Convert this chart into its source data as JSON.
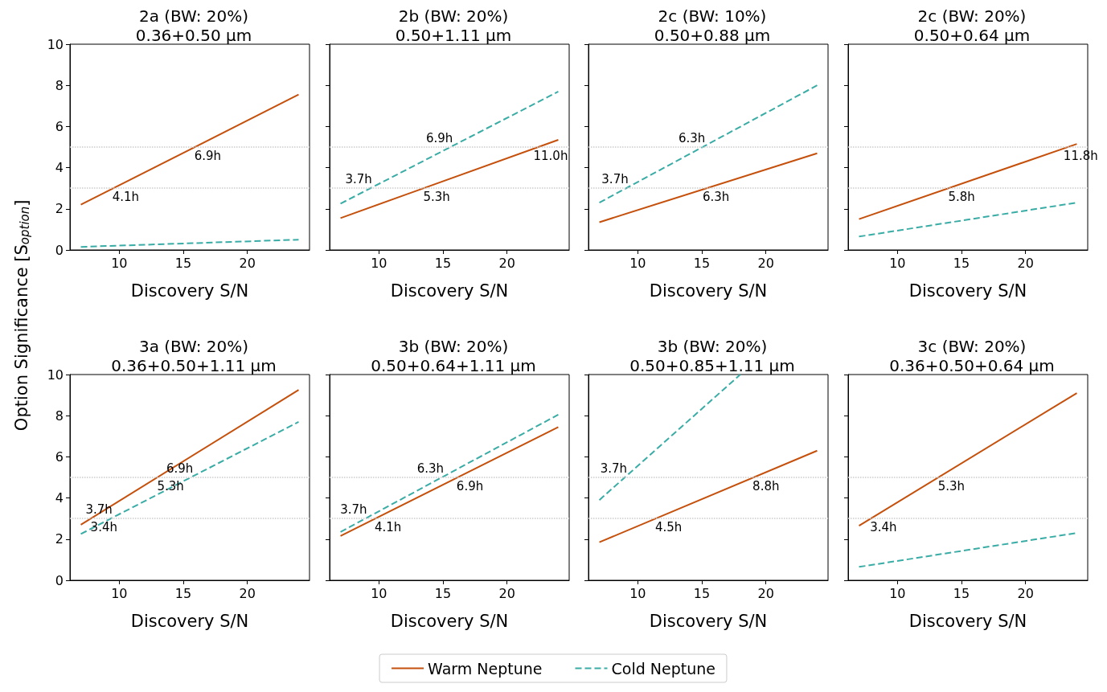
{
  "chart_data": [
    {
      "type": "line",
      "title": "2a (BW: 20%)\n0.36+0.50 μm",
      "xlabel": "Discovery S/N",
      "ylabel": "Option Significance [S$_{option}$]",
      "legend": "bottom",
      "marker": "none",
      "xlim": [
        6.15,
        24.85
      ],
      "ylim": [
        0,
        10
      ],
      "xticks": [
        10,
        15,
        20
      ],
      "yticks": [
        0,
        2,
        4,
        6,
        8,
        10
      ],
      "series": [
        {
          "name": "Warm Neptune",
          "color": "#c5500c",
          "line_style": "solid",
          "x": [
            7,
            24
          ],
          "values": [
            2.2,
            7.55
          ]
        },
        {
          "name": "Cold Neptune",
          "color": "#3aaca6",
          "line_style": "dashed",
          "x": [
            7,
            24
          ],
          "values": [
            0.15,
            0.5
          ]
        }
      ],
      "ref_lines": [
        {
          "axis": "y",
          "value": 3,
          "label": null,
          "color": "#cccccc",
          "line_style": "dotted"
        },
        {
          "axis": "y",
          "value": 5,
          "label": null,
          "color": "#cccccc",
          "line_style": "dotted"
        }
      ],
      "annotations": [
        {
          "text": "4.1h",
          "x": 9.5,
          "y": 3
        },
        {
          "text": "6.9h",
          "x": 15.9,
          "y": 5
        }
      ]
    },
    {
      "type": "line",
      "title": "2b (BW: 20%)\n0.50+1.11 μm",
      "xlabel": "Discovery S/N",
      "tick_labels": "x",
      "marker": "none",
      "xlim": [
        6.15,
        24.85
      ],
      "ylim": [
        0,
        10
      ],
      "xticks": [
        10,
        15,
        20
      ],
      "yticks": [
        0,
        2,
        4,
        6,
        8,
        10
      ],
      "series": [
        {
          "name": "Warm Neptune",
          "color": "#c5500c",
          "line_style": "solid",
          "x": [
            7,
            24
          ],
          "values": [
            1.55,
            5.35
          ]
        },
        {
          "name": "Cold Neptune",
          "color": "#3aaca6",
          "line_style": "dashed",
          "x": [
            7,
            24
          ],
          "values": [
            2.25,
            7.7
          ]
        }
      ],
      "ref_lines": [
        {
          "axis": "y",
          "value": 3,
          "label": null,
          "color": "#cccccc",
          "line_style": "dotted"
        },
        {
          "axis": "y",
          "value": 5,
          "label": null,
          "color": "#cccccc",
          "line_style": "dotted"
        }
      ],
      "annotations": [
        {
          "text": "3.7h",
          "x": 9.3,
          "y": 3
        },
        {
          "text": "6.9h",
          "x": 15.6,
          "y": 5
        },
        {
          "text": "5.3h",
          "x": 13.5,
          "y": 3
        },
        {
          "text": "11.0h",
          "x": 22.4,
          "y": 5
        }
      ]
    },
    {
      "type": "line",
      "title": "2c (BW: 10%)\n0.50+0.88 μm",
      "xlabel": "Discovery S/N",
      "tick_labels": "x",
      "marker": "none",
      "xlim": [
        6.15,
        24.85
      ],
      "ylim": [
        0,
        10
      ],
      "xticks": [
        10,
        15,
        20
      ],
      "yticks": [
        0,
        2,
        4,
        6,
        8,
        10
      ],
      "series": [
        {
          "name": "Warm Neptune",
          "color": "#c5500c",
          "line_style": "solid",
          "x": [
            7,
            24
          ],
          "values": [
            1.35,
            4.7
          ]
        },
        {
          "name": "Cold Neptune",
          "color": "#3aaca6",
          "line_style": "dashed",
          "x": [
            7,
            24
          ],
          "values": [
            2.3,
            8.0
          ]
        }
      ],
      "ref_lines": [
        {
          "axis": "y",
          "value": 3,
          "label": null,
          "color": "#cccccc",
          "line_style": "dotted"
        },
        {
          "axis": "y",
          "value": 5,
          "label": null,
          "color": "#cccccc",
          "line_style": "dotted"
        }
      ],
      "annotations": [
        {
          "text": "3.7h",
          "x": 9.1,
          "y": 3
        },
        {
          "text": "6.3h",
          "x": 15.1,
          "y": 5
        },
        {
          "text": "6.3h",
          "x": 15.1,
          "y": 3
        }
      ]
    },
    {
      "type": "line",
      "title": "2c (BW: 20%)\n0.50+0.64 μm",
      "xlabel": "Discovery S/N",
      "tick_labels": "x",
      "marker": "none",
      "xlim": [
        6.15,
        24.85
      ],
      "ylim": [
        0,
        10
      ],
      "xticks": [
        10,
        15,
        20
      ],
      "yticks": [
        0,
        2,
        4,
        6,
        8,
        10
      ],
      "series": [
        {
          "name": "Warm Neptune",
          "color": "#c5500c",
          "line_style": "solid",
          "x": [
            7,
            24
          ],
          "values": [
            1.5,
            5.15
          ]
        },
        {
          "name": "Cold Neptune",
          "color": "#3aaca6",
          "line_style": "dashed",
          "x": [
            7,
            24
          ],
          "values": [
            0.65,
            2.3
          ]
        }
      ],
      "ref_lines": [
        {
          "axis": "y",
          "value": 3,
          "label": null,
          "color": "#cccccc",
          "line_style": "dotted"
        },
        {
          "axis": "y",
          "value": 5,
          "label": null,
          "color": "#cccccc",
          "line_style": "dotted"
        }
      ],
      "annotations": [
        {
          "text": "5.8h",
          "x": 14.0,
          "y": 3
        },
        {
          "text": "11.8h",
          "x": 23.3,
          "y": 5
        }
      ]
    },
    {
      "type": "line",
      "title": "3a (BW: 20%)\n0.36+0.50+1.11 μm",
      "xlabel": "Discovery S/N",
      "marker": "none",
      "xlim": [
        6.15,
        24.85
      ],
      "ylim": [
        0,
        10
      ],
      "xticks": [
        10,
        15,
        20
      ],
      "yticks": [
        0,
        2,
        4,
        6,
        8,
        10
      ],
      "series": [
        {
          "name": "Warm Neptune",
          "color": "#c5500c",
          "line_style": "solid",
          "x": [
            7,
            24
          ],
          "values": [
            2.7,
            9.25
          ]
        },
        {
          "name": "Cold Neptune",
          "color": "#3aaca6",
          "line_style": "dashed",
          "x": [
            7,
            24
          ],
          "values": [
            2.25,
            7.7
          ]
        }
      ],
      "ref_lines": [
        {
          "axis": "y",
          "value": 3,
          "label": null,
          "color": "#cccccc",
          "line_style": "dotted"
        },
        {
          "axis": "y",
          "value": 5,
          "label": null,
          "color": "#cccccc",
          "line_style": "dotted"
        }
      ],
      "annotations": [
        {
          "text": "3.4h",
          "x": 7.8,
          "y": 3
        },
        {
          "text": "3.7h",
          "x": 9.3,
          "y": 3
        },
        {
          "text": "5.3h",
          "x": 13.0,
          "y": 5
        },
        {
          "text": "6.9h",
          "x": 15.6,
          "y": 5
        }
      ]
    },
    {
      "type": "line",
      "title": "3b (BW: 20%)\n0.50+0.64+1.11 μm",
      "xlabel": "Discovery S/N",
      "tick_labels": "x",
      "marker": "none",
      "xlim": [
        6.15,
        24.85
      ],
      "ylim": [
        0,
        10
      ],
      "xticks": [
        10,
        15,
        20
      ],
      "yticks": [
        0,
        2,
        4,
        6,
        8,
        10
      ],
      "series": [
        {
          "name": "Warm Neptune",
          "color": "#c5500c",
          "line_style": "solid",
          "x": [
            7,
            24
          ],
          "values": [
            2.15,
            7.45
          ]
        },
        {
          "name": "Cold Neptune",
          "color": "#3aaca6",
          "line_style": "dashed",
          "x": [
            7,
            24
          ],
          "values": [
            2.35,
            8.05
          ]
        }
      ],
      "ref_lines": [
        {
          "axis": "y",
          "value": 3,
          "label": null,
          "color": "#cccccc",
          "line_style": "dotted"
        },
        {
          "axis": "y",
          "value": 5,
          "label": null,
          "color": "#cccccc",
          "line_style": "dotted"
        }
      ],
      "annotations": [
        {
          "text": "3.7h",
          "x": 8.9,
          "y": 3
        },
        {
          "text": "4.1h",
          "x": 9.7,
          "y": 3
        },
        {
          "text": "6.3h",
          "x": 14.9,
          "y": 5
        },
        {
          "text": "6.9h",
          "x": 16.1,
          "y": 5
        }
      ]
    },
    {
      "type": "line",
      "title": "3b (BW: 20%)\n0.50+0.85+1.11 μm",
      "xlabel": "Discovery S/N",
      "tick_labels": "x",
      "marker": "none",
      "xlim": [
        6.15,
        24.85
      ],
      "ylim": [
        0,
        10
      ],
      "xticks": [
        10,
        15,
        20
      ],
      "yticks": [
        0,
        2,
        4,
        6,
        8,
        10
      ],
      "series": [
        {
          "name": "Warm Neptune",
          "color": "#c5500c",
          "line_style": "solid",
          "x": [
            7,
            24
          ],
          "values": [
            1.85,
            6.3
          ]
        },
        {
          "name": "Cold Neptune",
          "color": "#3aaca6",
          "line_style": "dashed",
          "x": [
            7,
            18
          ],
          "values": [
            3.9,
            10
          ]
        }
      ],
      "ref_lines": [
        {
          "axis": "y",
          "value": 3,
          "label": null,
          "color": "#cccccc",
          "line_style": "dotted"
        },
        {
          "axis": "y",
          "value": 5,
          "label": null,
          "color": "#cccccc",
          "line_style": "dotted"
        }
      ],
      "annotations": [
        {
          "text": "3.7h",
          "x": 9.0,
          "y": 5
        },
        {
          "text": "4.5h",
          "x": 11.4,
          "y": 3
        },
        {
          "text": "8.8h",
          "x": 19.0,
          "y": 5
        }
      ]
    },
    {
      "type": "line",
      "title": "3c (BW: 20%)\n0.36+0.50+0.64 μm",
      "xlabel": "Discovery S/N",
      "tick_labels": "x",
      "marker": "none",
      "xlim": [
        6.15,
        24.85
      ],
      "ylim": [
        0,
        10
      ],
      "xticks": [
        10,
        15,
        20
      ],
      "yticks": [
        0,
        2,
        4,
        6,
        8,
        10
      ],
      "series": [
        {
          "name": "Warm Neptune",
          "color": "#c5500c",
          "line_style": "solid",
          "x": [
            7,
            24
          ],
          "values": [
            2.65,
            9.1
          ]
        },
        {
          "name": "Cold Neptune",
          "color": "#3aaca6",
          "line_style": "dashed",
          "x": [
            7,
            24
          ],
          "values": [
            0.65,
            2.3
          ]
        }
      ],
      "ref_lines": [
        {
          "axis": "y",
          "value": 3,
          "label": null,
          "color": "#cccccc",
          "line_style": "dotted"
        },
        {
          "axis": "y",
          "value": 5,
          "label": null,
          "color": "#cccccc",
          "line_style": "dotted"
        }
      ],
      "annotations": [
        {
          "text": "3.4h",
          "x": 7.9,
          "y": 3
        },
        {
          "text": "5.3h",
          "x": 13.2,
          "y": 5
        }
      ]
    }
  ]
}
